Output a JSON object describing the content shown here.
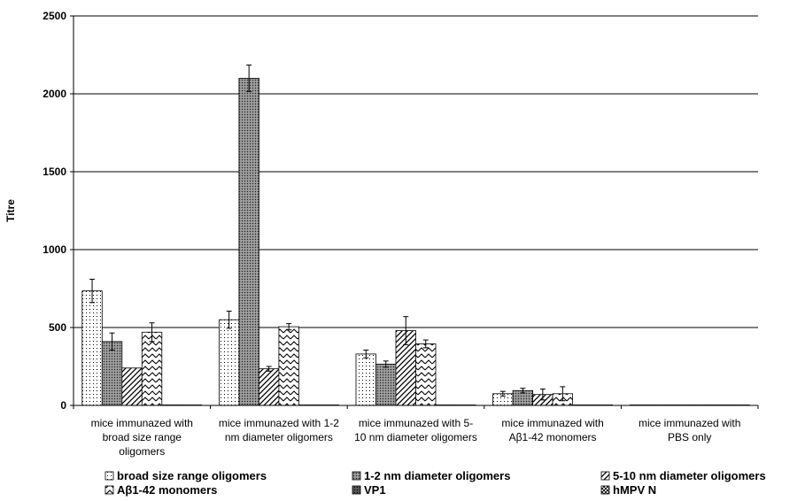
{
  "chart_data": {
    "type": "bar",
    "ylabel": "Titre",
    "xlabel": "",
    "ylim": [
      0,
      2500
    ],
    "yticks": [
      0,
      500,
      1000,
      1500,
      2000,
      2500
    ],
    "grid": true,
    "legend_position": "bottom",
    "categories": [
      [
        "mice immunazed with",
        "broad size range",
        "oligomers"
      ],
      [
        "mice immunazed with 1-2",
        "nm diameter oligomers"
      ],
      [
        "mice immunazed with 5-",
        "10 nm diameter oligomers"
      ],
      [
        "mice immunazed with",
        "Aβ1-42 monomers"
      ],
      [
        "mice immunazed with",
        "PBS only"
      ]
    ],
    "series": [
      {
        "name": "broad size range oligomers",
        "pattern": "dots",
        "values": [
          735,
          550,
          330,
          75,
          3
        ],
        "errors": [
          75,
          55,
          25,
          15,
          0
        ]
      },
      {
        "name": "1-2 nm diameter oligomers",
        "pattern": "dense",
        "values": [
          410,
          2100,
          265,
          95,
          3
        ],
        "errors": [
          55,
          85,
          20,
          15,
          0
        ]
      },
      {
        "name": "5-10 nm diameter oligomers",
        "pattern": "diag",
        "values": [
          240,
          235,
          480,
          70,
          3
        ],
        "errors": [
          0,
          15,
          90,
          35,
          0
        ],
        "values_note": ""
      },
      {
        "name": "Aβ1-42 monomers",
        "pattern": "zigzag",
        "values": [
          470,
          505,
          395,
          75,
          3
        ],
        "errors": [
          60,
          20,
          25,
          45,
          0
        ]
      },
      {
        "name": "VP1",
        "pattern": "solid",
        "values": [
          3,
          3,
          3,
          3,
          3
        ],
        "errors": [
          0,
          0,
          0,
          0,
          0
        ]
      },
      {
        "name": "hMPV N",
        "pattern": "cross",
        "values": [
          3,
          3,
          3,
          3,
          3
        ],
        "errors": [
          0,
          0,
          0,
          0,
          0
        ]
      }
    ]
  }
}
